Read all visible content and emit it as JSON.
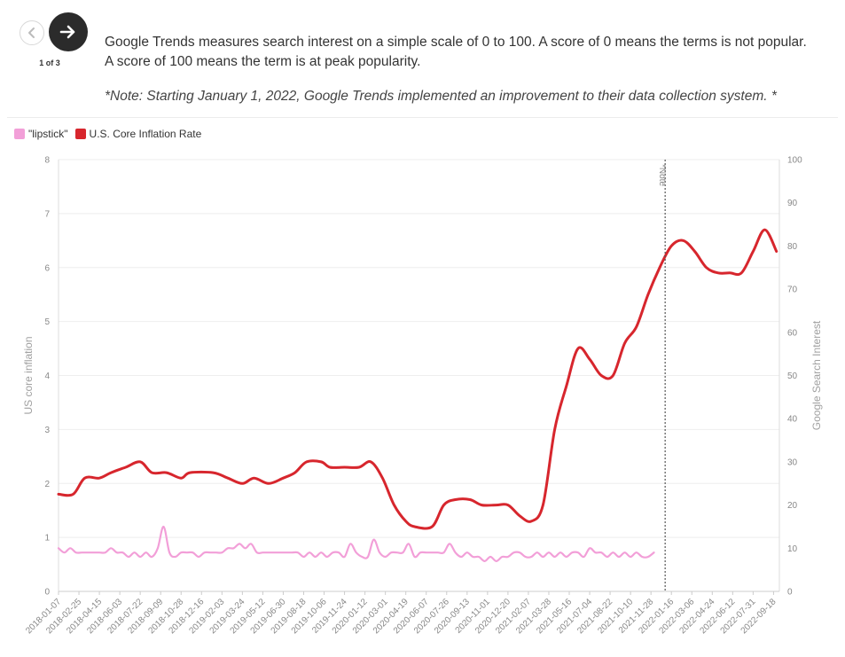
{
  "nav": {
    "counter": "1 of 3",
    "prev_icon": "arrow-left-icon",
    "next_icon": "arrow-right-icon"
  },
  "description": "Google Trends measures search interest on a simple scale of 0 to 100. A score of 0 means the terms is not popular. A score of 100 means the term is at peak popularity.",
  "note": "*Note: Starting January 1, 2022, Google Trends implemented an improvement to their data collection system. *",
  "colors": {
    "lipstick": "#f29fd8",
    "inflation": "#d7262d",
    "grid": "#eeeeee",
    "axis_text": "#888888"
  },
  "chart_data": {
    "type": "line",
    "x_ticks": [
      "2018-01-07",
      "2018-02-25",
      "2018-04-15",
      "2018-06-03",
      "2018-07-22",
      "2018-09-09",
      "2018-10-28",
      "2018-12-16",
      "2019-02-03",
      "2019-03-24",
      "2019-05-12",
      "2019-06-30",
      "2019-08-18",
      "2019-10-06",
      "2019-11-24",
      "2020-01-12",
      "2020-03-01",
      "2020-04-19",
      "2020-06-07",
      "2020-07-26",
      "2020-09-13",
      "2020-11-01",
      "2020-12-20",
      "2021-02-07",
      "2021-03-28",
      "2021-05-16",
      "2021-07-04",
      "2021-08-22",
      "2021-10-10",
      "2021-11-28",
      "2022-01-16",
      "2022-03-06",
      "2022-04-24",
      "2022-06-12",
      "2022-07-31",
      "2022-09-18"
    ],
    "xlim": [
      "2018-01-07",
      "2022-10-02"
    ],
    "y_left": {
      "label": "US core inflation",
      "ylim": [
        0,
        8
      ],
      "ticks": [
        "0",
        "1",
        "2",
        "3",
        "4",
        "5",
        "6",
        "7",
        "8"
      ]
    },
    "y_right": {
      "label": "Google Search Interest",
      "ylim": [
        0,
        100
      ],
      "ticks": [
        "0",
        "10",
        "20",
        "30",
        "40",
        "50",
        "60",
        "70",
        "80",
        "90",
        "100"
      ]
    },
    "annotation": {
      "label": "*Note",
      "x": "2022-01-01"
    },
    "legend": {
      "position": "top-left"
    },
    "grid": true,
    "series": [
      {
        "name": "U.S. Core Inflation Rate",
        "axis": "left",
        "points": [
          [
            "2018-01-07",
            1.8
          ],
          [
            "2018-02-11",
            1.8
          ],
          [
            "2018-03-11",
            2.1
          ],
          [
            "2018-04-15",
            2.1
          ],
          [
            "2018-05-13",
            2.2
          ],
          [
            "2018-06-17",
            2.3
          ],
          [
            "2018-07-22",
            2.4
          ],
          [
            "2018-08-19",
            2.2
          ],
          [
            "2018-09-23",
            2.2
          ],
          [
            "2018-10-28",
            2.1
          ],
          [
            "2018-11-18",
            2.2
          ],
          [
            "2019-01-13",
            2.2
          ],
          [
            "2019-02-17",
            2.1
          ],
          [
            "2019-03-24",
            2.0
          ],
          [
            "2019-04-21",
            2.1
          ],
          [
            "2019-05-26",
            2.0
          ],
          [
            "2019-06-30",
            2.1
          ],
          [
            "2019-07-28",
            2.2
          ],
          [
            "2019-08-25",
            2.4
          ],
          [
            "2019-09-29",
            2.4
          ],
          [
            "2019-10-20",
            2.3
          ],
          [
            "2019-11-24",
            2.3
          ],
          [
            "2019-12-29",
            2.3
          ],
          [
            "2020-01-26",
            2.4
          ],
          [
            "2020-02-23",
            2.1
          ],
          [
            "2020-03-22",
            1.6
          ],
          [
            "2020-04-19",
            1.3
          ],
          [
            "2020-05-10",
            1.2
          ],
          [
            "2020-06-21",
            1.2
          ],
          [
            "2020-07-19",
            1.6
          ],
          [
            "2020-08-16",
            1.7
          ],
          [
            "2020-09-20",
            1.7
          ],
          [
            "2020-10-18",
            1.6
          ],
          [
            "2020-11-22",
            1.6
          ],
          [
            "2020-12-20",
            1.6
          ],
          [
            "2021-01-17",
            1.4
          ],
          [
            "2021-02-14",
            1.3
          ],
          [
            "2021-03-14",
            1.6
          ],
          [
            "2021-04-11",
            3.0
          ],
          [
            "2021-05-09",
            3.8
          ],
          [
            "2021-06-06",
            4.5
          ],
          [
            "2021-07-04",
            4.3
          ],
          [
            "2021-08-01",
            4.0
          ],
          [
            "2021-08-29",
            4.0
          ],
          [
            "2021-09-26",
            4.6
          ],
          [
            "2021-10-24",
            4.9
          ],
          [
            "2021-11-21",
            5.5
          ],
          [
            "2021-12-19",
            6.0
          ],
          [
            "2022-01-16",
            6.4
          ],
          [
            "2022-02-13",
            6.5
          ],
          [
            "2022-03-13",
            6.3
          ],
          [
            "2022-04-10",
            6.0
          ],
          [
            "2022-05-08",
            5.9
          ],
          [
            "2022-06-05",
            5.9
          ],
          [
            "2022-07-03",
            5.9
          ],
          [
            "2022-07-31",
            6.3
          ],
          [
            "2022-08-28",
            6.7
          ],
          [
            "2022-09-25",
            6.3
          ]
        ]
      },
      {
        "name": "\"lipstick\"",
        "axis": "right",
        "points": [
          [
            "2018-01-07",
            10
          ],
          [
            "2018-01-21",
            9
          ],
          [
            "2018-02-04",
            10
          ],
          [
            "2018-02-18",
            9
          ],
          [
            "2018-03-04",
            9
          ],
          [
            "2018-03-18",
            9
          ],
          [
            "2018-04-01",
            9
          ],
          [
            "2018-04-15",
            9
          ],
          [
            "2018-04-29",
            9
          ],
          [
            "2018-05-13",
            10
          ],
          [
            "2018-05-27",
            9
          ],
          [
            "2018-06-10",
            9
          ],
          [
            "2018-06-24",
            8
          ],
          [
            "2018-07-08",
            9
          ],
          [
            "2018-07-22",
            8
          ],
          [
            "2018-08-05",
            9
          ],
          [
            "2018-08-19",
            8
          ],
          [
            "2018-09-02",
            10
          ],
          [
            "2018-09-16",
            15
          ],
          [
            "2018-09-30",
            9
          ],
          [
            "2018-10-14",
            8
          ],
          [
            "2018-10-28",
            9
          ],
          [
            "2018-11-11",
            9
          ],
          [
            "2018-11-25",
            9
          ],
          [
            "2018-12-09",
            8
          ],
          [
            "2018-12-23",
            9
          ],
          [
            "2019-01-06",
            9
          ],
          [
            "2019-01-20",
            9
          ],
          [
            "2019-02-03",
            9
          ],
          [
            "2019-02-17",
            10
          ],
          [
            "2019-03-03",
            10
          ],
          [
            "2019-03-17",
            11
          ],
          [
            "2019-03-31",
            10
          ],
          [
            "2019-04-14",
            11
          ],
          [
            "2019-04-28",
            9
          ],
          [
            "2019-05-12",
            9
          ],
          [
            "2019-05-26",
            9
          ],
          [
            "2019-06-09",
            9
          ],
          [
            "2019-06-23",
            9
          ],
          [
            "2019-07-07",
            9
          ],
          [
            "2019-07-21",
            9
          ],
          [
            "2019-08-04",
            9
          ],
          [
            "2019-08-18",
            8
          ],
          [
            "2019-09-01",
            9
          ],
          [
            "2019-09-15",
            8
          ],
          [
            "2019-09-29",
            9
          ],
          [
            "2019-10-13",
            8
          ],
          [
            "2019-10-27",
            9
          ],
          [
            "2019-11-10",
            9
          ],
          [
            "2019-11-24",
            8
          ],
          [
            "2019-12-08",
            11
          ],
          [
            "2019-12-22",
            9
          ],
          [
            "2020-01-05",
            8
          ],
          [
            "2020-01-19",
            8
          ],
          [
            "2020-02-02",
            12
          ],
          [
            "2020-02-16",
            9
          ],
          [
            "2020-03-01",
            8
          ],
          [
            "2020-03-15",
            9
          ],
          [
            "2020-03-29",
            9
          ],
          [
            "2020-04-12",
            9
          ],
          [
            "2020-04-26",
            11
          ],
          [
            "2020-05-10",
            8
          ],
          [
            "2020-05-24",
            9
          ],
          [
            "2020-06-07",
            9
          ],
          [
            "2020-06-21",
            9
          ],
          [
            "2020-07-05",
            9
          ],
          [
            "2020-07-19",
            9
          ],
          [
            "2020-08-02",
            11
          ],
          [
            "2020-08-16",
            9
          ],
          [
            "2020-08-30",
            8
          ],
          [
            "2020-09-13",
            9
          ],
          [
            "2020-09-27",
            8
          ],
          [
            "2020-10-11",
            8
          ],
          [
            "2020-10-25",
            7
          ],
          [
            "2020-11-08",
            8
          ],
          [
            "2020-11-22",
            7
          ],
          [
            "2020-12-06",
            8
          ],
          [
            "2020-12-20",
            8
          ],
          [
            "2021-01-03",
            9
          ],
          [
            "2021-01-17",
            9
          ],
          [
            "2021-01-31",
            8
          ],
          [
            "2021-02-14",
            8
          ],
          [
            "2021-02-28",
            9
          ],
          [
            "2021-03-14",
            8
          ],
          [
            "2021-03-28",
            9
          ],
          [
            "2021-04-11",
            8
          ],
          [
            "2021-04-25",
            9
          ],
          [
            "2021-05-09",
            8
          ],
          [
            "2021-05-23",
            9
          ],
          [
            "2021-06-06",
            9
          ],
          [
            "2021-06-20",
            8
          ],
          [
            "2021-07-04",
            10
          ],
          [
            "2021-07-18",
            9
          ],
          [
            "2021-08-01",
            9
          ],
          [
            "2021-08-15",
            8
          ],
          [
            "2021-08-29",
            9
          ],
          [
            "2021-09-12",
            8
          ],
          [
            "2021-09-26",
            9
          ],
          [
            "2021-10-10",
            8
          ],
          [
            "2021-10-24",
            9
          ],
          [
            "2021-11-07",
            8
          ],
          [
            "2021-11-21",
            8
          ],
          [
            "2021-12-05",
            9
          ]
        ]
      }
    ]
  }
}
